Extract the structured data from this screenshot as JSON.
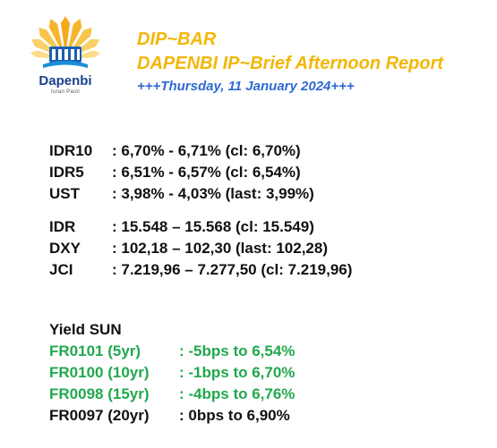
{
  "logo": {
    "name": "Dapenbi",
    "tagline": "Iuran Pasti"
  },
  "header": {
    "title": "DIP~BAR",
    "subtitle": "DAPENBI IP~Brief Afternoon Report",
    "date": "+++Thursday, 11 January 2024+++"
  },
  "rates": [
    {
      "label": "IDR10",
      "value": ": 6,70% - 6,71% (cl: 6,70%)"
    },
    {
      "label": "IDR5",
      "value": ": 6,51% - 6,57% (cl: 6,54%)"
    },
    {
      "label": "UST",
      "value": ": 3,98% - 4,03% (last: 3,99%)"
    }
  ],
  "markets": [
    {
      "label": "IDR",
      "value": ": 15.548 – 15.568 (cl: 15.549)"
    },
    {
      "label": "DXY",
      "value": ": 102,18 – 102,30 (last: 102,28)"
    },
    {
      "label": "JCI",
      "value": ": 7.219,96 – 7.277,50 (cl: 7.219,96)"
    }
  ],
  "yield": {
    "title": "Yield SUN",
    "items": [
      {
        "label": "FR0101 (5yr)",
        "value": ": -5bps to 6,54%",
        "color": "#21a84d"
      },
      {
        "label": "FR0100 (10yr)",
        "value": ": -1bps to 6,70%",
        "color": "#21a84d"
      },
      {
        "label": "FR0098 (15yr)",
        "value": ": -4bps to 6,76%",
        "color": "#21a84d"
      },
      {
        "label": "FR0097 (20yr)",
        "value": ": 0bps to 6,90%",
        "color": "#111111"
      }
    ]
  }
}
